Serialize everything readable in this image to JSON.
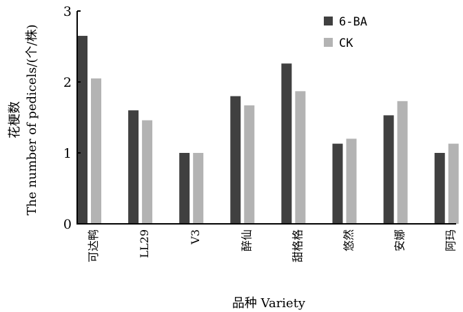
{
  "chart_data": {
    "type": "bar",
    "categories": [
      "可达鸭",
      "LL29",
      "V3",
      "醉仙",
      "甜格格",
      "悠然",
      "安娜",
      "阿玛"
    ],
    "series": [
      {
        "name": "6-BA",
        "color": "#404040",
        "values": [
          2.65,
          1.6,
          1.0,
          1.8,
          2.26,
          1.13,
          1.53,
          1.0
        ]
      },
      {
        "name": "CK",
        "color": "#b3b3b3",
        "values": [
          2.05,
          1.46,
          1.0,
          1.67,
          1.87,
          1.2,
          1.73,
          1.13
        ]
      }
    ],
    "ylim": [
      0,
      3
    ],
    "yticks": [
      "0",
      "1",
      "2",
      "3"
    ],
    "ylabel_line1": "花梗数",
    "ylabel_line2": "The number of pedicels/(个/株)",
    "xlabel": "品种 Variety",
    "legend_position": "top-right",
    "grid": false
  }
}
